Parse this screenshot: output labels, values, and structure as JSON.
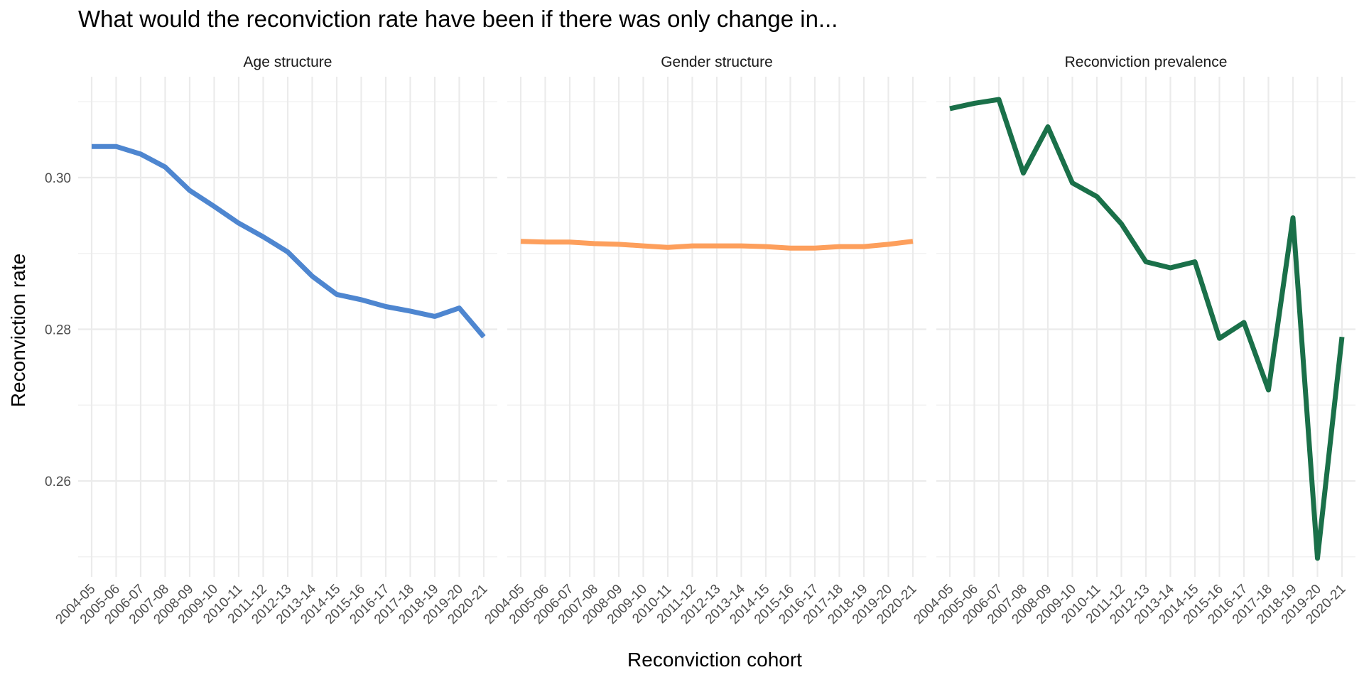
{
  "chart_data": {
    "type": "line",
    "title": "What would the reconviction rate have been if there was only change in...",
    "xlabel": "Reconviction cohort",
    "ylabel": "Reconviction rate",
    "ylim": [
      0.245,
      0.313
    ],
    "yticks": [
      0.26,
      0.28,
      0.3
    ],
    "ytick_labels": [
      "0.26",
      "0.28",
      "0.30"
    ],
    "grid": true,
    "legend": "none",
    "categories": [
      "2004-05",
      "2005-06",
      "2006-07",
      "2007-08",
      "2008-09",
      "2009-10",
      "2010-11",
      "2011-12",
      "2012-13",
      "2013-14",
      "2014-15",
      "2015-16",
      "2016-17",
      "2017-18",
      "2018-19",
      "2019-20",
      "2020-21"
    ],
    "facets": [
      {
        "name": "Age structure",
        "color": "#4e86d0",
        "values": [
          0.3041,
          0.3041,
          0.3031,
          0.3014,
          0.2983,
          0.2962,
          0.294,
          0.2922,
          0.2902,
          0.287,
          0.2846,
          0.2839,
          0.283,
          0.2824,
          0.2817,
          0.2828,
          0.279
        ]
      },
      {
        "name": "Gender structure",
        "color": "#fd9f5c",
        "values": [
          0.2916,
          0.2915,
          0.2915,
          0.2913,
          0.2912,
          0.291,
          0.2908,
          0.291,
          0.291,
          0.291,
          0.2909,
          0.2907,
          0.2907,
          0.2909,
          0.2909,
          0.2912,
          0.2916
        ]
      },
      {
        "name": "Reconviction prevalence",
        "color": "#1a7049",
        "values": [
          0.3091,
          0.3098,
          0.3103,
          0.3006,
          0.3067,
          0.2993,
          0.2975,
          0.2939,
          0.2889,
          0.2881,
          0.2889,
          0.2788,
          0.2809,
          0.272,
          0.2947,
          0.2498,
          0.279
        ]
      }
    ]
  }
}
